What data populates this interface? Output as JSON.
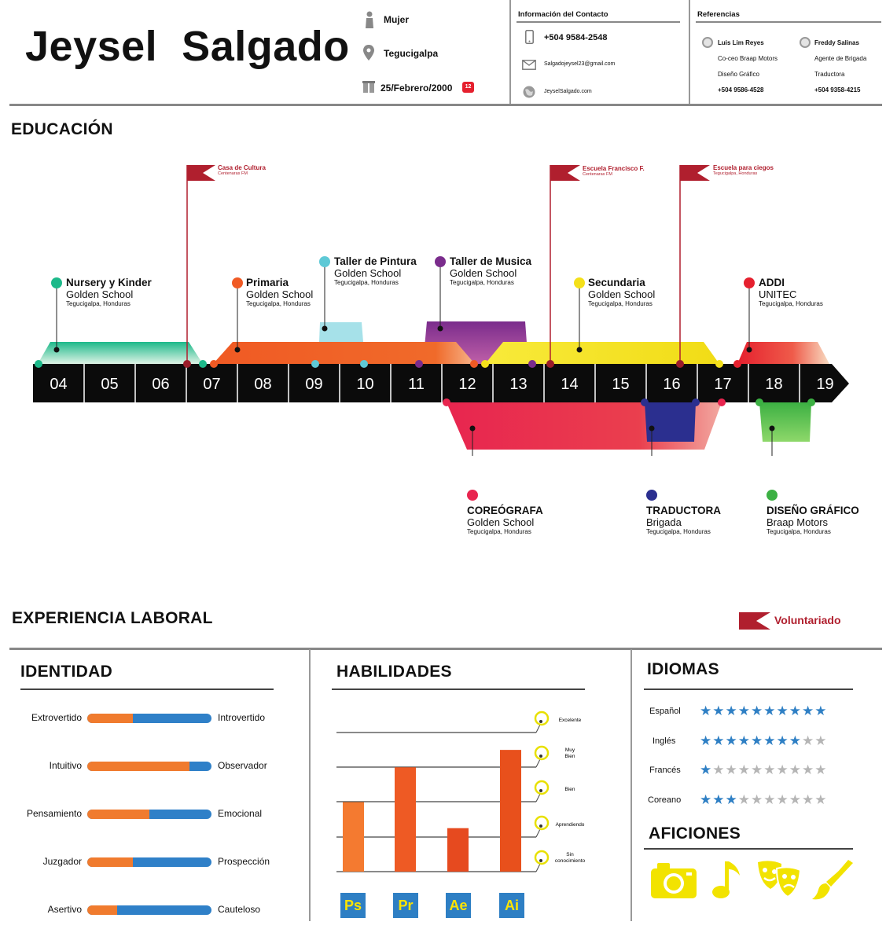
{
  "header": {
    "name": "Jeysel  Salgado",
    "gender": "Mujer",
    "city": "Tegucigalpa",
    "birthdate": "25/Febrero/2000",
    "calendar_badge": "12",
    "contact_title": "Información del Contacto",
    "phone": "+504 9584-2548",
    "email": "Salgadojeysel23@gmail.com",
    "website": "JeyselSalgado.com",
    "references_title": "Referencias",
    "references": [
      {
        "name": "Luis Lim Reyes",
        "role": "Co-ceo Braap Motors",
        "role2": "Diseño Gráfico",
        "phone": "+504 9586-4528"
      },
      {
        "name": "Freddy Salinas",
        "role": "Agente de Brigada",
        "role2": "Traductora",
        "phone": "+504 9358-4215"
      }
    ]
  },
  "education": {
    "title": "EDUCACIÓN",
    "axis": [
      "04",
      "05",
      "06",
      "07",
      "08",
      "09",
      "10",
      "11",
      "12",
      "13",
      "14",
      "15",
      "16",
      "17",
      "18",
      "19"
    ],
    "items": [
      {
        "title": "Nursery y Kinder",
        "school": "Golden School",
        "loc": "Tegucigalpa, Honduras",
        "color": "#1db98a"
      },
      {
        "title": "Primaria",
        "school": "Golden School",
        "loc": "Tegucigalpa, Honduras",
        "color": "#f05a24"
      },
      {
        "title": "Taller de Pintura",
        "school": "Golden School",
        "loc": "Tegucigalpa, Honduras",
        "color": "#5ec9d6"
      },
      {
        "title": "Taller de Musica",
        "school": "Golden School",
        "loc": "Tegucigalpa, Honduras",
        "color": "#7a2c8c"
      },
      {
        "title": "Secundaria",
        "school": "Golden School",
        "loc": "Tegucigalpa, Honduras",
        "color": "#f4e01a"
      },
      {
        "title": "ADDI",
        "school": "UNITEC",
        "loc": "Tegucigalpa, Honduras",
        "color": "#e5202e"
      }
    ],
    "flags": [
      {
        "title": "Casa de Cultura",
        "sub": "Centenaras FM"
      },
      {
        "title": "Escuela Francisco F.",
        "sub": "Centenaras FM"
      },
      {
        "title": "Escuela para ciegos",
        "sub": "Tegucigalpa, Honduras"
      }
    ],
    "jobs": [
      {
        "title": "COREÓGRAFA",
        "place": "Golden School",
        "loc": "Tegucigalpa, Honduras",
        "color": "#e8254f"
      },
      {
        "title": "TRADUCTORA",
        "place": "Brigada",
        "loc": "Tegucigalpa, Honduras",
        "color": "#2b2f8f"
      },
      {
        "title": "DISEÑO GRÁFICO",
        "place": "Braap Motors",
        "loc": "Tegucigalpa, Honduras",
        "color": "#3cb043"
      }
    ]
  },
  "experience": {
    "title": "EXPERIENCIA LABORAL",
    "legend": "Voluntariado"
  },
  "identity": {
    "title": "IDENTIDAD",
    "traits": [
      {
        "left": "Extrovertido",
        "right": "Introvertido",
        "value": 0.37
      },
      {
        "left": "Intuitivo",
        "right": "Observador",
        "value": 0.82
      },
      {
        "left": "Pensamiento",
        "right": "Emocional",
        "value": 0.5
      },
      {
        "left": "Juzgador",
        "right": "Prospección",
        "value": 0.37
      },
      {
        "left": "Asertivo",
        "right": "Cauteloso",
        "value": 0.24
      }
    ]
  },
  "skills": {
    "title": "HABILIDADES",
    "levels": [
      "Excelente",
      "Muy Bien",
      "Bien",
      "Aprendiendo",
      "Sin conocimiento"
    ],
    "apps": [
      "Ps",
      "Pr",
      "Ae",
      "Ai"
    ],
    "colors": [
      "#f47a30",
      "#ee5a24",
      "#e64a1f",
      "#e8501c"
    ],
    "values": [
      2,
      3,
      1.25,
      3.5
    ]
  },
  "languages": {
    "title": "IDIOMAS",
    "items": [
      {
        "name": "Español",
        "stars": 10
      },
      {
        "name": "Inglés",
        "stars": 8
      },
      {
        "name": "Francés",
        "stars": 1
      },
      {
        "name": "Coreano",
        "stars": 3
      }
    ],
    "star_on": "#2e7fc4",
    "star_off": "#b5b5b5"
  },
  "hobbies": {
    "title": "AFICIONES",
    "icons": [
      "camera-icon",
      "music-note-icon",
      "theater-masks-icon",
      "paintbrush-icon"
    ],
    "color": "#f2e300"
  }
}
